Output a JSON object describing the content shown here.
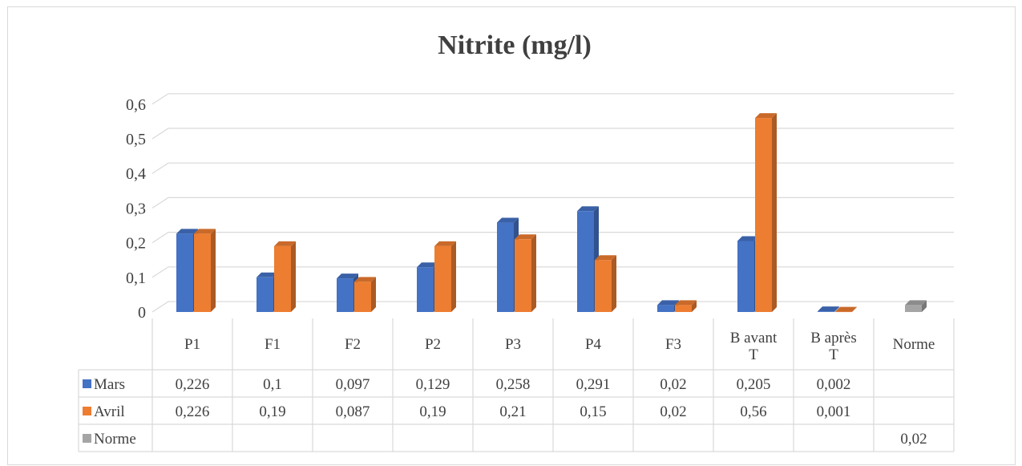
{
  "chart_data": {
    "type": "bar",
    "title": "Nitrite (mg/l)",
    "categories": [
      "P1",
      "F1",
      "F2",
      "P2",
      "P3",
      "P4",
      "F3",
      "B avant T",
      "B après T",
      "Norme"
    ],
    "category_lines": [
      [
        "P1"
      ],
      [
        "F1"
      ],
      [
        "F2"
      ],
      [
        "P2"
      ],
      [
        "P3"
      ],
      [
        "P4"
      ],
      [
        "F3"
      ],
      [
        "B avant",
        "T"
      ],
      [
        "B après",
        "T"
      ],
      [
        "Norme"
      ]
    ],
    "ylim": [
      0,
      0.6
    ],
    "yticks": [
      0,
      0.1,
      0.2,
      0.3,
      0.4,
      0.5,
      0.6
    ],
    "ytick_labels": [
      "0",
      "0,1",
      "0,2",
      "0,3",
      "0,4",
      "0,5",
      "0,6"
    ],
    "grid": true,
    "legend": "data-table",
    "series": [
      {
        "name": "Mars",
        "color": "#4472c4",
        "values": [
          0.226,
          0.1,
          0.097,
          0.129,
          0.258,
          0.291,
          0.02,
          0.205,
          0.002,
          null
        ],
        "labels": [
          "0,226",
          "0,1",
          "0,097",
          "0,129",
          "0,258",
          "0,291",
          "0,02",
          "0,205",
          "0,002",
          ""
        ]
      },
      {
        "name": "Avril",
        "color": "#ed7d31",
        "values": [
          0.226,
          0.19,
          0.087,
          0.19,
          0.21,
          0.15,
          0.02,
          0.56,
          0.001,
          null
        ],
        "labels": [
          "0,226",
          "0,19",
          "0,087",
          "0,19",
          "0,21",
          "0,15",
          "0,02",
          "0,56",
          "0,001",
          ""
        ]
      },
      {
        "name": "Norme",
        "color": "#a5a5a5",
        "values": [
          null,
          null,
          null,
          null,
          null,
          null,
          null,
          null,
          null,
          0.02
        ],
        "labels": [
          "",
          "",
          "",
          "",
          "",
          "",
          "",
          "",
          "",
          "0,02"
        ]
      }
    ]
  }
}
